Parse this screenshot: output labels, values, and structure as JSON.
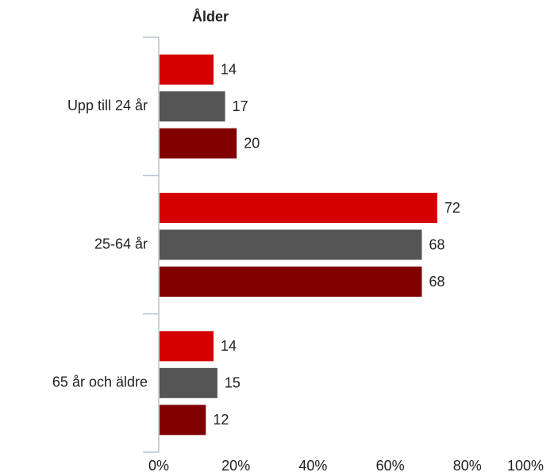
{
  "chart_data": {
    "type": "hbar",
    "title": "Ålder",
    "categories": [
      "Upp till 24 år",
      "25-64 år",
      "65 år och äldre"
    ],
    "series": [
      {
        "color": "#d40000",
        "values": [
          14,
          72,
          14
        ]
      },
      {
        "color": "#555555",
        "values": [
          17,
          68,
          15
        ]
      },
      {
        "color": "#800000",
        "values": [
          20,
          68,
          12
        ]
      }
    ],
    "xlim": [
      0,
      100
    ],
    "xticks": [
      {
        "value": 0,
        "label": "0%"
      },
      {
        "value": 20,
        "label": "20%"
      },
      {
        "value": 40,
        "label": "40%"
      },
      {
        "value": 60,
        "label": "60%"
      },
      {
        "value": 80,
        "label": "80%"
      },
      {
        "value": 100,
        "label": "100%"
      }
    ]
  }
}
